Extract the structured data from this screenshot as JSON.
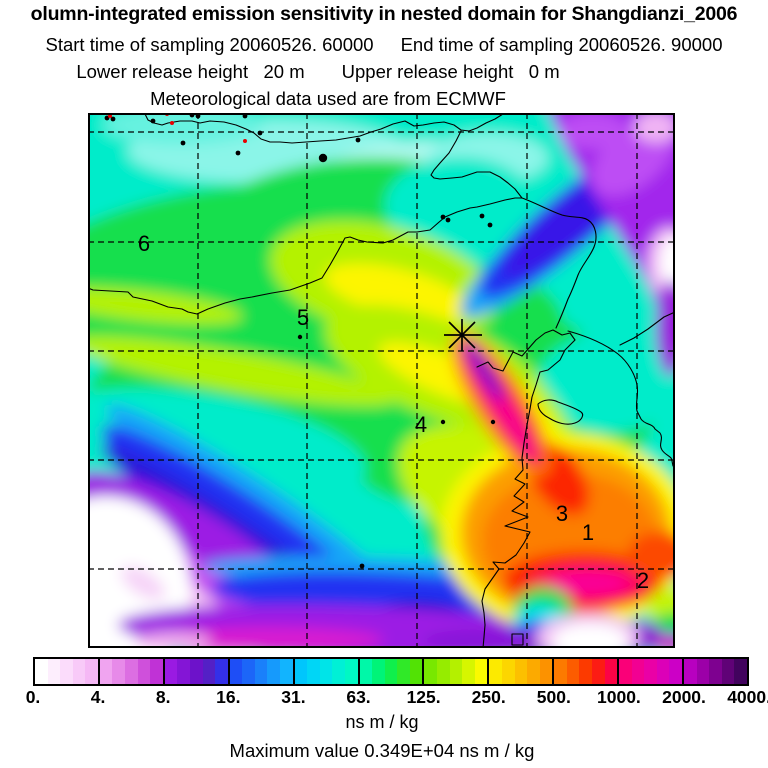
{
  "header": {
    "title": "olumn-integrated emission sensitivity in nested domain for Shangdianzi_2006",
    "start_time": "Start time of sampling 20060526. 60000",
    "end_time": "End time of sampling 20060526. 90000",
    "lower_height": "Lower release height   20 m",
    "upper_height": "Upper release height   0 m",
    "met_line": "Meteorological data used are from ECMWF"
  },
  "map": {
    "region_labels": [
      {
        "text": "6"
      },
      {
        "text": "5"
      },
      {
        "text": "4"
      },
      {
        "text": "3"
      },
      {
        "text": "1"
      },
      {
        "text": "2"
      }
    ],
    "release_marker": "asterisk",
    "marker_color": "#000000"
  },
  "colorbar": {
    "labels": [
      "0.",
      "4.",
      "8.",
      "16.",
      "31.",
      "63.",
      "125.",
      "250.",
      "500.",
      "1000.",
      "2000.",
      "4000."
    ],
    "segments": [
      {
        "colors": [
          "#ffffff",
          "#fdeefd",
          "#fbdcfb",
          "#f8caf8",
          "#f5b8f5"
        ]
      },
      {
        "colors": [
          "#f0a4f0",
          "#e78ae9",
          "#dc6ee2",
          "#cf50db",
          "#c032d6"
        ]
      },
      {
        "colors": [
          "#9a1ae2",
          "#8415d6",
          "#6d12ca",
          "#5420c6",
          "#3430e8"
        ]
      },
      {
        "colors": [
          "#1e4ef6",
          "#1c66f8",
          "#1a80fa",
          "#169afc",
          "#12b4fe"
        ]
      },
      {
        "colors": [
          "#00c6fc",
          "#00d6f6",
          "#00e4e8",
          "#00f0d6",
          "#00f8c4"
        ]
      },
      {
        "colors": [
          "#00f8a8",
          "#00f478",
          "#10ef4c",
          "#30e928",
          "#52e205"
        ]
      },
      {
        "colors": [
          "#78e800",
          "#96ec00",
          "#b4f000",
          "#d6f600",
          "#fafa00"
        ]
      },
      {
        "colors": [
          "#fcea00",
          "#fcd600",
          "#fcc000",
          "#fcaa00",
          "#fc9200"
        ]
      },
      {
        "colors": [
          "#fc7a00",
          "#fc5c00",
          "#fc3a00",
          "#fc1c14",
          "#fc0346"
        ]
      },
      {
        "colors": [
          "#fa0078",
          "#f20092",
          "#ea00a6",
          "#dc00b8",
          "#cc00c6"
        ]
      },
      {
        "colors": [
          "#b800c0",
          "#9c00a8",
          "#7e0190",
          "#600277",
          "#42035e"
        ]
      }
    ]
  },
  "footer": {
    "unit": "ns m / kg",
    "max_line": "Maximum value  0.349E+04 ns m / kg"
  },
  "chart_data": {
    "type": "heatmap",
    "title": "olumn-integrated emission sensitivity in nested domain for Shangdianzi_2006",
    "site": "Shangdianzi",
    "sampling_start": "20060526. 60000",
    "sampling_end": "20060526. 90000",
    "lower_release_height_m": 20,
    "upper_release_height_m": 0,
    "met_data_source": "ECMWF",
    "quantity": "column-integrated emission sensitivity",
    "unit": "ns m / kg",
    "colorbar_boundaries": [
      0,
      4,
      8,
      16,
      31,
      63,
      125,
      250,
      500,
      1000,
      2000,
      4000
    ],
    "colorbar_scale": "logarithmic",
    "max_value_text": "0.349E+04",
    "max_value": 3490,
    "region_labels_on_map": [
      "6",
      "5",
      "4",
      "3",
      "1",
      "2"
    ],
    "release_point_marker": "asterisk near domain center-right, at top of high-sensitivity plume",
    "grid": "dashed graticule, 5 vertical x 5 horizontal lines",
    "legend_position": "horizontal colorbar below map"
  }
}
